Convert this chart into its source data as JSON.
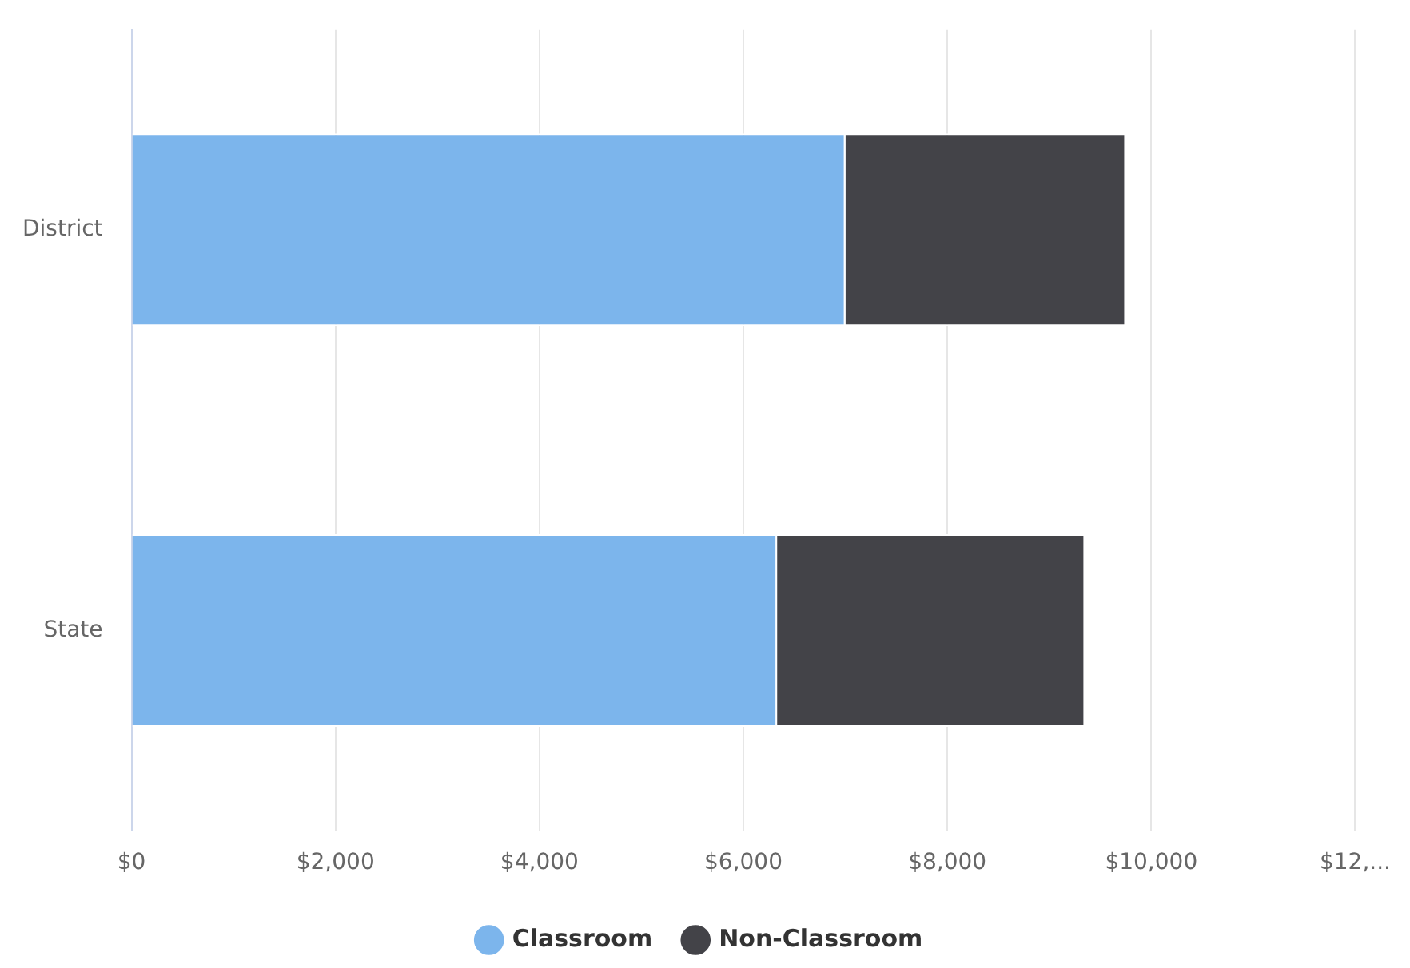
{
  "chart_data": {
    "type": "bar",
    "orientation": "horizontal",
    "stacked": true,
    "categories": [
      "District",
      "State"
    ],
    "series": [
      {
        "name": "Classroom",
        "color": "#7cb5ec",
        "values": [
          7000,
          6330
        ]
      },
      {
        "name": "Non-Classroom",
        "color": "#434348",
        "values": [
          2750,
          3020
        ]
      }
    ],
    "xlim": [
      0,
      12000
    ],
    "xticks": [
      {
        "value": 0,
        "label": "$0"
      },
      {
        "value": 2000,
        "label": "$2,000"
      },
      {
        "value": 4000,
        "label": "$4,000"
      },
      {
        "value": 6000,
        "label": "$6,000"
      },
      {
        "value": 8000,
        "label": "$8,000"
      },
      {
        "value": 10000,
        "label": "$10,000"
      },
      {
        "value": 12000,
        "label": "$12,..."
      }
    ],
    "grid": "x",
    "legend": "bottom"
  }
}
